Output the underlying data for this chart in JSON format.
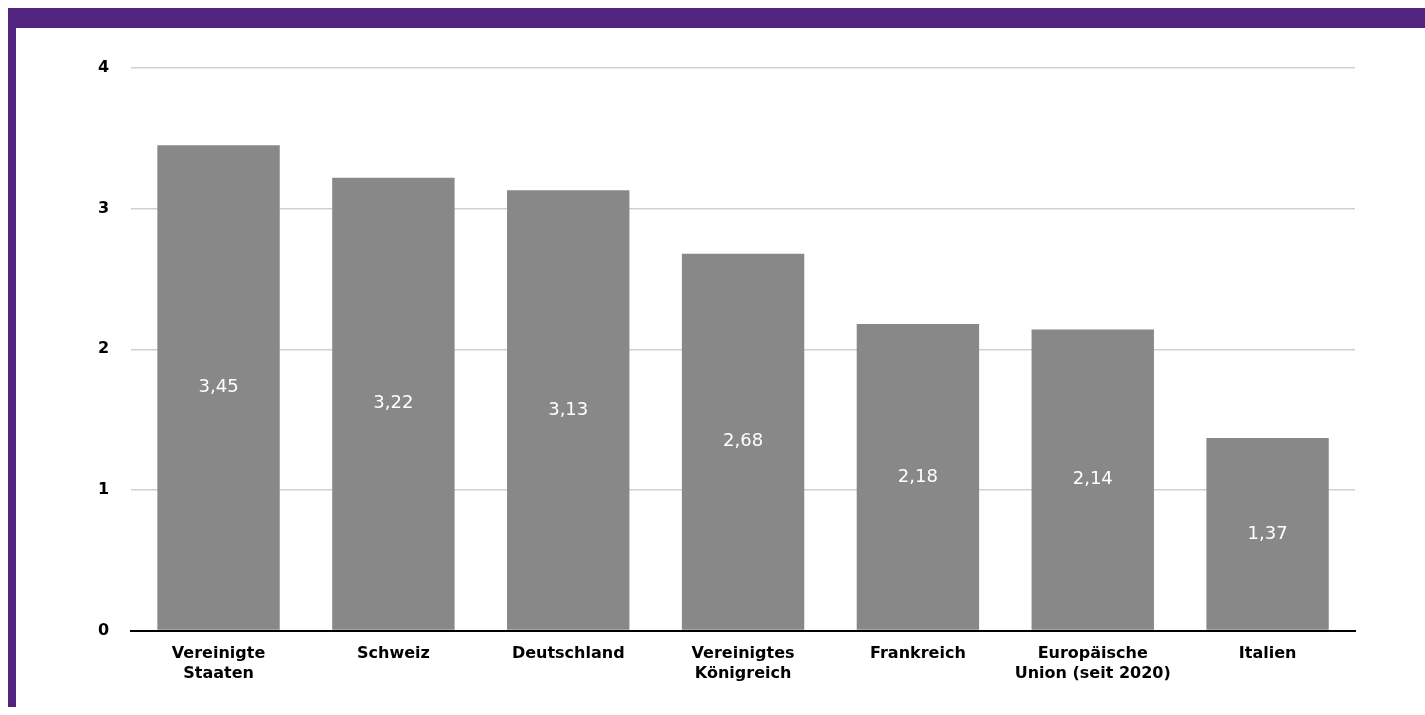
{
  "chart_data": {
    "type": "bar",
    "categories": [
      "Vereinigte Staaten",
      "Schweiz",
      "Deutschland",
      "Vereinigtes Königreich",
      "Frankreich",
      "Europäische Union (seit 2020)",
      "Italien"
    ],
    "values": [
      3.45,
      3.22,
      3.13,
      2.68,
      2.18,
      2.14,
      1.37
    ],
    "value_labels": [
      "3,45",
      "3,22",
      "3,13",
      "2,68",
      "2,18",
      "2,14",
      "1,37"
    ],
    "color": "#888888",
    "ylim": [
      0,
      4
    ],
    "yticks": [
      0,
      1,
      2,
      3,
      4
    ],
    "grid": "y",
    "legend": false
  }
}
